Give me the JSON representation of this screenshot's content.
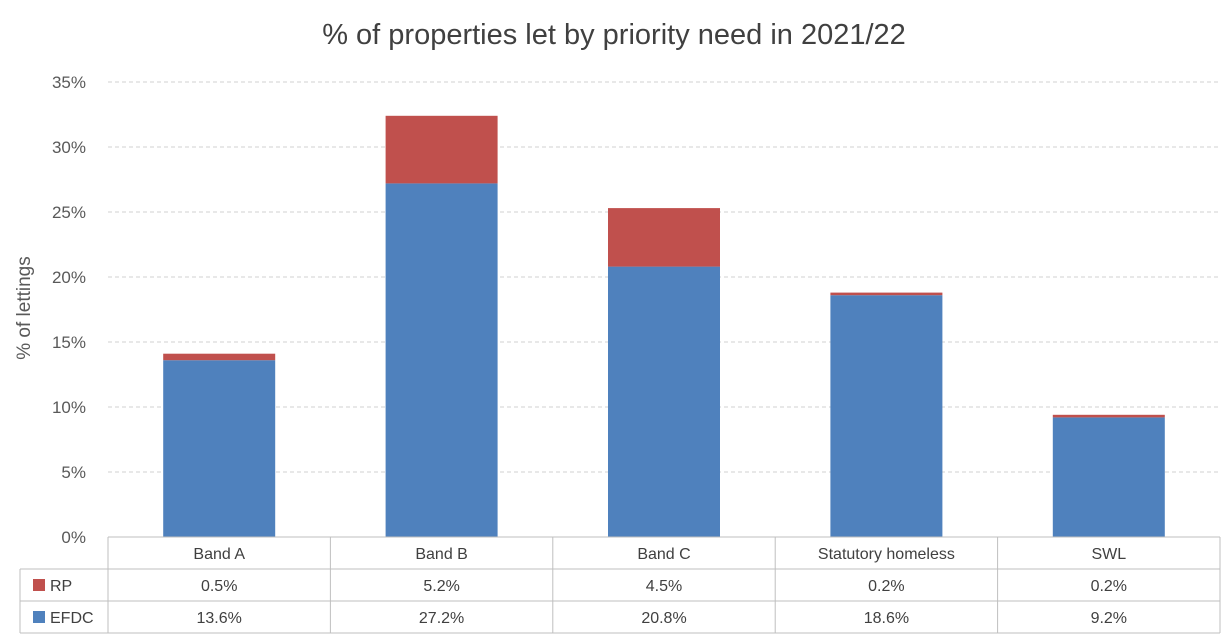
{
  "chart_data": {
    "type": "bar",
    "stacked": true,
    "title": "% of properties let by priority need in 2021/22",
    "ylabel": "% of lettings",
    "xlabel": "",
    "ylim": [
      0,
      35
    ],
    "yticks": [
      "0%",
      "5%",
      "10%",
      "15%",
      "20%",
      "25%",
      "30%",
      "35%"
    ],
    "grid": true,
    "legend": "data-table",
    "categories": [
      "Band A",
      "Band B",
      "Band C",
      "Statutory homeless",
      "SWL"
    ],
    "series": [
      {
        "name": "EFDC",
        "color": "#4f81bd",
        "values": [
          13.6,
          27.2,
          20.8,
          18.6,
          9.2
        ],
        "labels": [
          "13.6%",
          "27.2%",
          "20.8%",
          "18.6%",
          "9.2%"
        ]
      },
      {
        "name": "RP",
        "color": "#c0504d",
        "values": [
          0.5,
          5.2,
          4.5,
          0.2,
          0.2
        ],
        "labels": [
          "0.5%",
          "5.2%",
          "4.5%",
          "0.2%",
          "0.2%"
        ]
      }
    ],
    "table_row_order": [
      "RP",
      "EFDC"
    ]
  }
}
